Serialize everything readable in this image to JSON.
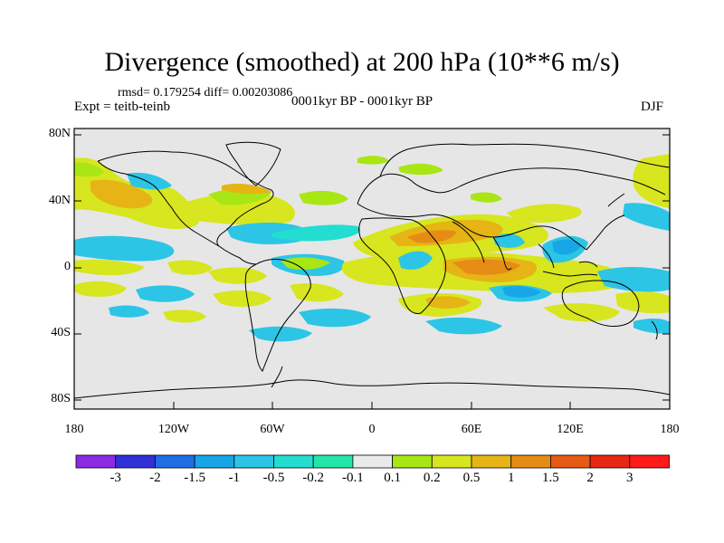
{
  "title": "Divergence (smoothed) at 200 hPa (10**6 m/s)",
  "stats": "rmsd= 0.179254 diff= 0.00203086",
  "experiment": "Expt = teitb-teinb",
  "period": "0001kyr BP - 0001kyr BP",
  "season": "DJF",
  "colors": {
    "ocean": "#e6e6e6",
    "coast": "#000000"
  },
  "y_axis_labels": [
    "80N",
    "40N",
    "0",
    "40S",
    "80S"
  ],
  "x_axis_labels": [
    "180",
    "120W",
    "60W",
    "0",
    "60E",
    "120E",
    "180"
  ],
  "colorbar": {
    "labels": [
      "-3",
      "-2",
      "-1.5",
      "-1",
      "-0.5",
      "-0.2",
      "-0.1",
      "0.1",
      "0.2",
      "0.5",
      "1",
      "1.5",
      "2",
      "3"
    ],
    "colors": [
      "#8c2ae6",
      "#3030d8",
      "#1f6ee6",
      "#17a6e6",
      "#2cc5e6",
      "#22ddd0",
      "#24e6a8",
      "#eaeaea",
      "#a8e614",
      "#d7e61e",
      "#e6b414",
      "#e68c14",
      "#e65a14",
      "#e62814",
      "#ff1a1a"
    ]
  }
}
